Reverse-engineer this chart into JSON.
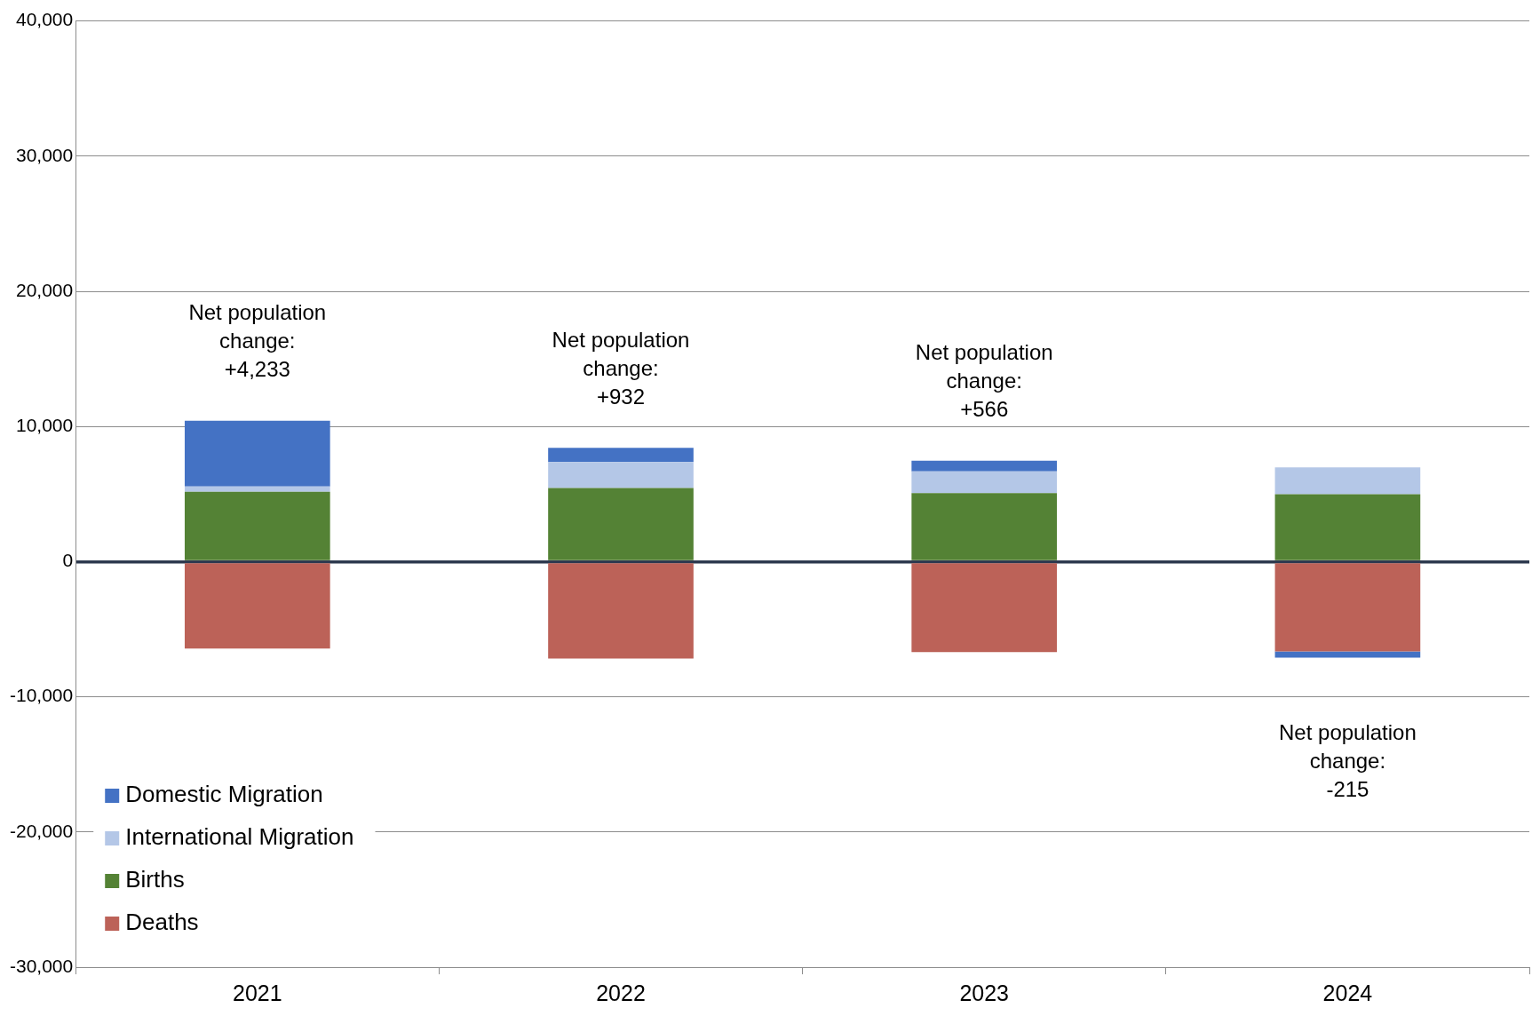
{
  "chart_data": {
    "type": "bar",
    "stacked": true,
    "categories": [
      "2021",
      "2022",
      "2023",
      "2024"
    ],
    "series": [
      {
        "name": "Domestic Migration",
        "color": "#4472c4",
        "values": [
          4860,
          1050,
          780,
          -450
        ]
      },
      {
        "name": "International Migration",
        "color": "#b4c7e7",
        "values": [
          400,
          1930,
          1610,
          1980
        ]
      },
      {
        "name": "Births",
        "color": "#548235",
        "values": [
          5170,
          5440,
          5070,
          4990
        ]
      },
      {
        "name": "Deaths",
        "color": "#bc6258",
        "values": [
          -6430,
          -7160,
          -6700,
          -6650
        ]
      }
    ],
    "ylim": [
      -30000,
      40000
    ],
    "yticks": [
      {
        "value": -30000,
        "label": "-30,000"
      },
      {
        "value": -20000,
        "label": "-20,000"
      },
      {
        "value": -10000,
        "label": "-10,000"
      },
      0,
      {
        "value": 10000,
        "label": "10,000"
      },
      {
        "value": 20000,
        "label": "20,000"
      },
      {
        "value": 30000,
        "label": "30,000"
      },
      {
        "value": 40000,
        "label": "40,000"
      }
    ],
    "grid": "y",
    "legend": "bottom left",
    "annotations": [
      "Net population change: +4,233",
      "Net population change: +932",
      "Net population change: +566",
      "Net population change: -215"
    ]
  }
}
